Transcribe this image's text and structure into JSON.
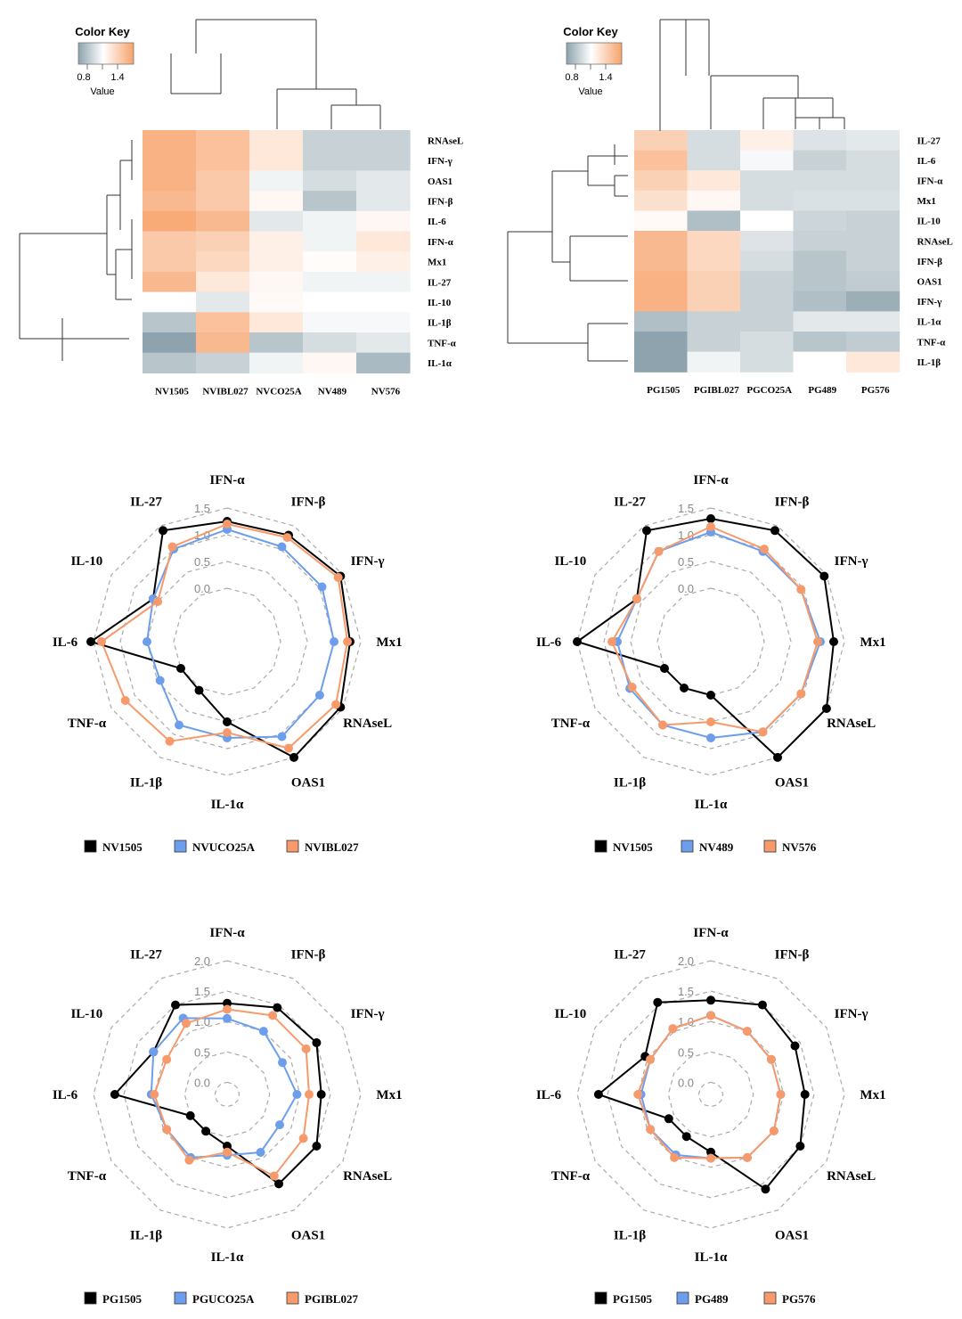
{
  "chart_data": [
    {
      "type": "heatmap",
      "id": "hm1",
      "color_key": {
        "title": "Color Key",
        "ticks": [
          "0.8",
          "1.4"
        ],
        "label": "Value",
        "low_color": "#8ea3ad",
        "mid_color": "#ffffff",
        "high_color": "#f7a26b",
        "range": [
          0.6,
          1.6
        ]
      },
      "columns": [
        "NV1505",
        "NVIBL027",
        "NVCO25A",
        "NV489",
        "NV576"
      ],
      "rows": [
        "RNAseL",
        "IFN-γ",
        "OAS1",
        "IFN-β",
        "IL-6",
        "IFN-α",
        "Mx1",
        "IL-27",
        "IL-10",
        "IL-1β",
        "TNF-α",
        "IL-1α"
      ],
      "values": [
        [
          1.5,
          1.4,
          1.15,
          0.8,
          0.8
        ],
        [
          1.5,
          1.4,
          1.15,
          0.8,
          0.8
        ],
        [
          1.5,
          1.35,
          0.95,
          0.85,
          0.9
        ],
        [
          1.45,
          1.35,
          1.05,
          0.75,
          0.9
        ],
        [
          1.55,
          1.45,
          0.9,
          0.95,
          1.05
        ],
        [
          1.35,
          1.3,
          1.1,
          0.95,
          1.15
        ],
        [
          1.35,
          1.25,
          1.1,
          1.02,
          1.1
        ],
        [
          1.45,
          1.15,
          1.05,
          0.95,
          0.95
        ],
        [
          1.0,
          0.9,
          1.03,
          1.0,
          1.0
        ],
        [
          0.75,
          1.4,
          1.15,
          0.97,
          0.97
        ],
        [
          0.55,
          1.45,
          0.75,
          0.85,
          0.9
        ],
        [
          0.75,
          0.8,
          0.95,
          1.05,
          0.7
        ]
      ]
    },
    {
      "type": "heatmap",
      "id": "hm2",
      "color_key": {
        "title": "Color Key",
        "ticks": [
          "0.8",
          "1.4"
        ],
        "label": "Value",
        "low_color": "#8ea3ad",
        "mid_color": "#ffffff",
        "high_color": "#f7a26b",
        "range": [
          0.6,
          1.6
        ]
      },
      "columns": [
        "PG1505",
        "PGIBL027",
        "PGCO25A",
        "PG489",
        "PG576"
      ],
      "rows": [
        "IL-27",
        "IL-6",
        "IFN-α",
        "Mx1",
        "IL-10",
        "RNAseL",
        "IFN-β",
        "OAS1",
        "IFN-γ",
        "IL-1α",
        "TNF-α",
        "IL-1β"
      ],
      "values": [
        [
          1.3,
          0.85,
          1.1,
          0.88,
          0.9
        ],
        [
          1.4,
          0.85,
          0.97,
          0.8,
          0.85
        ],
        [
          1.3,
          1.15,
          0.85,
          0.85,
          0.85
        ],
        [
          1.2,
          1.05,
          0.85,
          0.87,
          0.87
        ],
        [
          1.03,
          0.72,
          1.0,
          0.82,
          0.8
        ],
        [
          1.45,
          1.25,
          0.88,
          0.8,
          0.8
        ],
        [
          1.45,
          1.25,
          0.85,
          0.75,
          0.8
        ],
        [
          1.5,
          1.3,
          0.8,
          0.75,
          0.78
        ],
        [
          1.5,
          1.3,
          0.8,
          0.72,
          0.65
        ],
        [
          0.72,
          0.8,
          0.8,
          0.9,
          0.9
        ],
        [
          0.5,
          0.8,
          0.85,
          0.75,
          0.78
        ],
        [
          0.6,
          0.95,
          0.85,
          1.0,
          1.15
        ]
      ]
    },
    {
      "type": "radar",
      "id": "r1",
      "axes": [
        "IFN-α",
        "IFN-β",
        "IFN-γ",
        "Mx1",
        "RNAseL",
        "OAS1",
        "IL-1α",
        "IL-1β",
        "TNF-α",
        "IL-6",
        "IL-10",
        "IL-27"
      ],
      "rmin": -1,
      "rmax": 1.5,
      "rings": [
        0.0,
        0.5,
        1.0,
        1.5
      ],
      "ring_labels": [
        "0.0",
        "0.5",
        "1.0",
        "1.5"
      ],
      "series": [
        {
          "name": "NV1505",
          "color": "#000000",
          "values": [
            1.25,
            1.3,
            1.45,
            1.3,
            1.45,
            1.5,
            0.5,
            0.05,
            0.0,
            1.55,
            0.6,
            1.4
          ]
        },
        {
          "name": "NVUCO25A",
          "color": "#6d9eeb",
          "values": [
            1.1,
            1.05,
            1.05,
            1.0,
            1.0,
            1.05,
            0.8,
            0.8,
            0.45,
            0.5,
            0.6,
            1.0
          ]
        },
        {
          "name": "NVIBL027",
          "color": "#f79a6b",
          "values": [
            1.2,
            1.25,
            1.4,
            1.25,
            1.35,
            1.3,
            0.7,
            1.15,
            1.2,
            1.35,
            0.5,
            1.05
          ]
        }
      ]
    },
    {
      "type": "radar",
      "id": "r2",
      "axes": [
        "IFN-α",
        "IFN-β",
        "IFN-γ",
        "Mx1",
        "RNAseL",
        "OAS1",
        "IL-1α",
        "IL-1β",
        "TNF-α",
        "IL-6",
        "IL-10",
        "IL-27"
      ],
      "rmin": -1,
      "rmax": 1.5,
      "rings": [
        0.0,
        0.5,
        1.0,
        1.5
      ],
      "ring_labels": [
        "0.0",
        "0.5",
        "1.0",
        "1.5"
      ],
      "series": [
        {
          "name": "NV1505",
          "color": "#000000",
          "values": [
            1.3,
            1.4,
            1.45,
            1.3,
            1.5,
            1.5,
            0.0,
            0.0,
            0.0,
            1.5,
            0.6,
            1.4
          ]
        },
        {
          "name": "NV489",
          "color": "#6d9eeb",
          "values": [
            1.05,
            0.95,
            0.95,
            1.05,
            0.95,
            0.95,
            0.8,
            0.8,
            0.75,
            0.75,
            0.6,
            0.95
          ]
        },
        {
          "name": "NV576",
          "color": "#f79a6b",
          "values": [
            1.15,
            1.0,
            0.95,
            1.0,
            0.95,
            0.95,
            0.5,
            0.8,
            0.7,
            0.85,
            0.6,
            0.95
          ]
        }
      ]
    },
    {
      "type": "radar",
      "id": "r3",
      "axes": [
        "IFN-α",
        "IFN-β",
        "IFN-γ",
        "Mx1",
        "RNAseL",
        "OAS1",
        "IL-1α",
        "IL-1β",
        "TNF-α",
        "IL-6",
        "IL-10",
        "IL-27"
      ],
      "rmin": -0.2,
      "rmax": 2.0,
      "rings": [
        0.0,
        0.5,
        1.0,
        1.5,
        2.0
      ],
      "ring_labels": [
        "0.0",
        "0.5",
        "1.0",
        "1.5",
        "2.0"
      ],
      "series": [
        {
          "name": "PG1505",
          "color": "#000000",
          "values": [
            1.3,
            1.45,
            1.5,
            1.35,
            1.5,
            1.5,
            0.65,
            0.5,
            0.5,
            1.65,
            1.2,
            1.5
          ]
        },
        {
          "name": "PGUCO25A",
          "color": "#6d9eeb",
          "values": [
            1.05,
            1.0,
            0.85,
            0.95,
            0.8,
            0.9,
            0.8,
            1.0,
            0.95,
            1.05,
            1.2,
            1.25
          ]
        },
        {
          "name": "PGIBL027",
          "color": "#f79a6b",
          "values": [
            1.2,
            1.3,
            1.3,
            1.15,
            1.25,
            1.35,
            0.75,
            1.05,
            0.95,
            1.0,
            0.95,
            1.15
          ]
        }
      ]
    },
    {
      "type": "radar",
      "id": "r4",
      "axes": [
        "IFN-α",
        "IFN-β",
        "IFN-γ",
        "Mx1",
        "RNAseL",
        "OAS1",
        "IL-1α",
        "IL-1β",
        "TNF-α",
        "IL-6",
        "IL-10",
        "IL-27"
      ],
      "rmin": -0.2,
      "rmax": 2.0,
      "rings": [
        0.0,
        0.5,
        1.0,
        1.5,
        2.0
      ],
      "ring_labels": [
        "0.0",
        "0.5",
        "1.0",
        "1.5",
        "2.0"
      ],
      "series": [
        {
          "name": "PG1505",
          "color": "#000000",
          "values": [
            1.35,
            1.5,
            1.4,
            1.35,
            1.5,
            1.6,
            0.75,
            0.6,
            0.6,
            1.65,
            1.05,
            1.55
          ]
        },
        {
          "name": "PG489",
          "color": "#6d9eeb",
          "values": [
            1.1,
            1.0,
            0.95,
            0.95,
            1.0,
            1.0,
            0.85,
            0.95,
            0.95,
            0.95,
            0.95,
            1.05
          ]
        },
        {
          "name": "PG576",
          "color": "#f79a6b",
          "values": [
            1.1,
            1.0,
            0.95,
            0.95,
            1.0,
            1.0,
            0.85,
            1.0,
            0.95,
            1.0,
            0.95,
            1.05
          ]
        }
      ]
    }
  ]
}
